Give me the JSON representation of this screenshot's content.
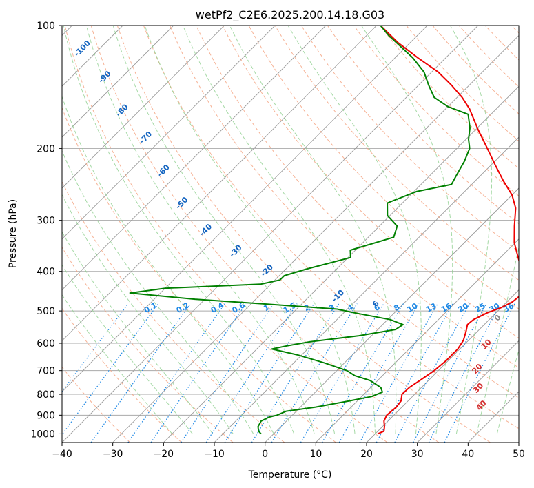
{
  "chart_data": {
    "type": "skew-t",
    "title": "wetPf2_C2E6.2025.200.14.18.G03",
    "xlabel": "Temperature (°C)",
    "ylabel": "Pressure (hPa)",
    "xlim": [
      -40,
      50
    ],
    "ylim": [
      1050,
      100
    ],
    "y_scale": "log",
    "x_ticks": [
      "−40",
      "−30",
      "−20",
      "−10",
      "0",
      "10",
      "20",
      "30",
      "40",
      "50"
    ],
    "x_tick_values": [
      -40,
      -30,
      -20,
      -10,
      0,
      10,
      20,
      30,
      40,
      50
    ],
    "y_ticks": [
      "100",
      "200",
      "300",
      "400",
      "500",
      "600",
      "700",
      "800",
      "900",
      "1000"
    ],
    "y_tick_values": [
      100,
      200,
      300,
      400,
      500,
      600,
      700,
      800,
      900,
      1000
    ],
    "grid": true,
    "series": [
      {
        "role": "temperature",
        "color": "#ee0000",
        "points": [
          [
            1000,
            20.5
          ],
          [
            985,
            21.2
          ],
          [
            960,
            20.4
          ],
          [
            930,
            19.2
          ],
          [
            900,
            18.6
          ],
          [
            860,
            18.9
          ],
          [
            830,
            18.6
          ],
          [
            800,
            17.5
          ],
          [
            770,
            17.6
          ],
          [
            740,
            18.3
          ],
          [
            700,
            19.2
          ],
          [
            660,
            19.6
          ],
          [
            620,
            19.6
          ],
          [
            590,
            19.0
          ],
          [
            560,
            17.7
          ],
          [
            540,
            16.7
          ],
          [
            525,
            16.9
          ],
          [
            505,
            18.3
          ],
          [
            490,
            20.1
          ],
          [
            475,
            21.1
          ],
          [
            460,
            21.4
          ],
          [
            440,
            20.6
          ],
          [
            420,
            18.7
          ],
          [
            400,
            17.0
          ],
          [
            370,
            13.5
          ],
          [
            340,
            9.8
          ],
          [
            310,
            6.6
          ],
          [
            280,
            3.3
          ],
          [
            260,
            0.0
          ],
          [
            240,
            -4.5
          ],
          [
            220,
            -9.1
          ],
          [
            200,
            -14.0
          ],
          [
            180,
            -19.5
          ],
          [
            160,
            -25.3
          ],
          [
            150,
            -29.0
          ],
          [
            140,
            -33.5
          ],
          [
            130,
            -38.7
          ],
          [
            120,
            -45.5
          ],
          [
            110,
            -52.5
          ],
          [
            100,
            -59.2
          ]
        ]
      },
      {
        "role": "dewpoint",
        "color": "#008000",
        "points": [
          [
            1000,
            -2.5
          ],
          [
            985,
            -3.5
          ],
          [
            960,
            -4.5
          ],
          [
            930,
            -5.0
          ],
          [
            910,
            -4.2
          ],
          [
            900,
            -3.0
          ],
          [
            880,
            -2.0
          ],
          [
            860,
            3.0
          ],
          [
            830,
            8.5
          ],
          [
            810,
            12.0
          ],
          [
            790,
            13.2
          ],
          [
            770,
            12.0
          ],
          [
            740,
            8.5
          ],
          [
            720,
            4.5
          ],
          [
            700,
            2.0
          ],
          [
            670,
            -4.0
          ],
          [
            640,
            -11.0
          ],
          [
            620,
            -17.0
          ],
          [
            610,
            -15.0
          ],
          [
            595,
            -11.0
          ],
          [
            575,
            -2.5
          ],
          [
            555,
            3.5
          ],
          [
            540,
            4.0
          ],
          [
            525,
            0.5
          ],
          [
            505,
            -8.0
          ],
          [
            495,
            -12.0
          ],
          [
            480,
            -28.0
          ],
          [
            468,
            -42.0
          ],
          [
            452,
            -56.0
          ],
          [
            440,
            -50.0
          ],
          [
            430,
            -32.0
          ],
          [
            420,
            -29.0
          ],
          [
            410,
            -29.0
          ],
          [
            395,
            -26.0
          ],
          [
            370,
            -19.5
          ],
          [
            355,
            -21.0
          ],
          [
            330,
            -15.0
          ],
          [
            310,
            -16.5
          ],
          [
            292,
            -20.5
          ],
          [
            272,
            -23.0
          ],
          [
            255,
            -19.5
          ],
          [
            245,
            -14.0
          ],
          [
            230,
            -15.0
          ],
          [
            215,
            -16.0
          ],
          [
            200,
            -17.5
          ],
          [
            190,
            -19.5
          ],
          [
            178,
            -21.5
          ],
          [
            165,
            -24.5
          ],
          [
            158,
            -30.0
          ],
          [
            150,
            -34.5
          ],
          [
            140,
            -38.0
          ],
          [
            130,
            -41.5
          ],
          [
            120,
            -46.5
          ],
          [
            112,
            -51.5
          ],
          [
            106,
            -55.5
          ],
          [
            100,
            -59.2
          ]
        ]
      }
    ],
    "dry_adiabat_labels": [
      "0",
      "10",
      "20",
      "30",
      "40"
    ],
    "moist_adiabat_labels": [
      "-100",
      "-90",
      "-80",
      "-70",
      "-60",
      "-50",
      "-40",
      "-30",
      "-20",
      "-10",
      "6"
    ],
    "mixing_ratio_labels": [
      "0.1",
      "0.2",
      "0.4",
      "0.6",
      "1",
      "1.5",
      "2",
      "3",
      "4",
      "6",
      "8",
      "10",
      "13",
      "16",
      "20",
      "25",
      "30",
      "36"
    ],
    "colors": {
      "isotherm": "#999999",
      "isobar": "#aaaaaa",
      "dry_adiabat": "#f4a582",
      "moist_adiabat": "#8fcf8f",
      "mixing_ratio": "#1e88e5",
      "temperature": "#ee0000",
      "dewpoint": "#008000"
    }
  }
}
